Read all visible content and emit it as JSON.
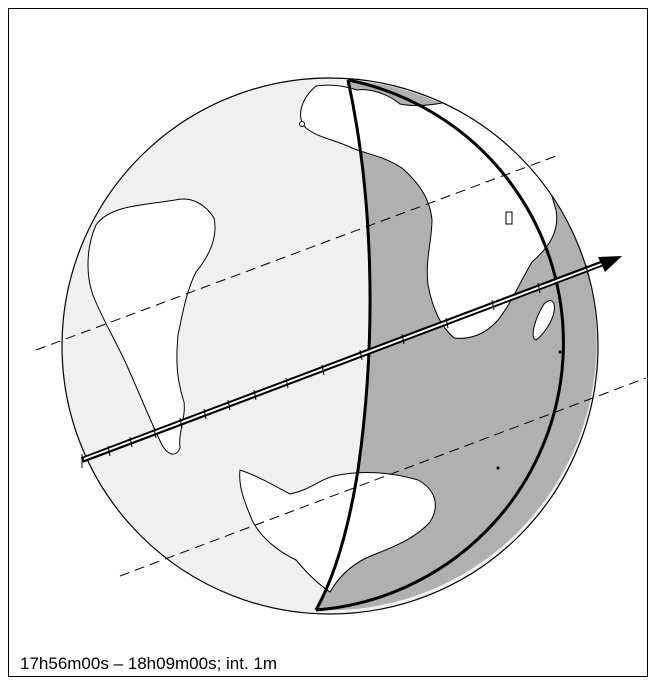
{
  "caption": "17h56m00s – 18h09m00s; int.  1m",
  "colors": {
    "day_side": "#f0f0f0",
    "night_side": "#b0b0b0",
    "land": "#ffffff",
    "outline": "#000000"
  },
  "map": {
    "projection": "orthographic",
    "features": [
      "globe",
      "terminator",
      "central-path",
      "north-limit",
      "south-limit",
      "direction-arrow",
      "time-ticks"
    ],
    "path_direction": "east-northeast"
  }
}
